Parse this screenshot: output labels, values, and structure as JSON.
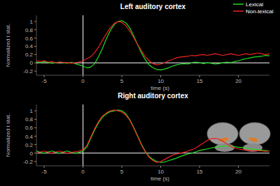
{
  "chart_data": [
    {
      "type": "line",
      "title": "Left auditory cortex",
      "x_label": "time (s)",
      "y_label": "Normalized t stat.",
      "legend": "upper right",
      "xlim": [
        -6,
        24
      ],
      "ylim": [
        -0.3,
        1.15
      ],
      "xticks": [
        -5,
        0,
        5,
        10,
        15,
        20
      ],
      "yticks": [
        -0.2,
        0,
        0.2,
        0.4,
        0.6,
        0.8,
        1
      ],
      "x": [
        -6,
        -5.5,
        -5,
        -4.5,
        -4,
        -3.5,
        -3,
        -2.5,
        -2,
        -1.5,
        -1,
        -0.5,
        0,
        0.5,
        1,
        1.5,
        2,
        2.5,
        3,
        3.5,
        4,
        4.5,
        5,
        5.5,
        6,
        6.5,
        7,
        7.5,
        8,
        8.5,
        9,
        9.5,
        10,
        10.5,
        11,
        11.5,
        12,
        12.5,
        13,
        13.5,
        14,
        14.5,
        15,
        15.5,
        16,
        16.5,
        17,
        17.5,
        18,
        18.5,
        19,
        19.5,
        20,
        20.5,
        21,
        21.5,
        22,
        22.5,
        23,
        23.5,
        24
      ],
      "series": [
        {
          "name": "Lexical",
          "color": "#22dd22",
          "values": [
            0.02,
            0.0,
            0.03,
            0.01,
            -0.01,
            0.0,
            0.02,
            0.0,
            -0.01,
            0.01,
            -0.02,
            -0.05,
            -0.08,
            -0.12,
            -0.1,
            -0.02,
            0.15,
            0.35,
            0.58,
            0.78,
            0.92,
            1.0,
            1.02,
            0.97,
            0.85,
            0.66,
            0.45,
            0.25,
            0.08,
            -0.05,
            -0.12,
            -0.16,
            -0.17,
            -0.15,
            -0.12,
            -0.08,
            -0.05,
            -0.03,
            -0.02,
            -0.03,
            0.0,
            0.02,
            0.0,
            -0.02,
            0.0,
            -0.01,
            -0.03,
            -0.02,
            0.0,
            0.02,
            0.0,
            0.03,
            0.05,
            0.08,
            0.1,
            0.12,
            0.14,
            0.15,
            0.16,
            0.18,
            0.17
          ]
        },
        {
          "name": "Non-lexical",
          "color": "#ee2222",
          "values": [
            0.05,
            0.03,
            0.05,
            0.02,
            0.03,
            0.0,
            0.02,
            0.01,
            0.0,
            -0.01,
            0.0,
            0.02,
            0.05,
            0.1,
            0.15,
            0.25,
            0.38,
            0.55,
            0.7,
            0.85,
            0.95,
            1.0,
            0.98,
            0.9,
            0.78,
            0.62,
            0.45,
            0.3,
            0.15,
            0.05,
            -0.02,
            -0.05,
            -0.03,
            0.0,
            0.05,
            0.08,
            0.12,
            0.14,
            0.15,
            0.16,
            0.18,
            0.17,
            0.19,
            0.2,
            0.18,
            0.2,
            0.22,
            0.2,
            0.18,
            0.2,
            0.22,
            0.2,
            0.18,
            0.2,
            0.22,
            0.2,
            0.22,
            0.24,
            0.22,
            0.2,
            0.22
          ]
        }
      ]
    },
    {
      "type": "line",
      "title": "Right auditory cortex",
      "x_label": "time (s)",
      "y_label": "Normalized t stat.",
      "xlim": [
        -6,
        24
      ],
      "ylim": [
        -0.3,
        1.15
      ],
      "xticks": [
        -5,
        0,
        5,
        10,
        15,
        20
      ],
      "yticks": [
        -0.2,
        0,
        0.2,
        0.4,
        0.6,
        0.8,
        1
      ],
      "x": [
        -6,
        -5.5,
        -5,
        -4.5,
        -4,
        -3.5,
        -3,
        -2.5,
        -2,
        -1.5,
        -1,
        -0.5,
        0,
        0.5,
        1,
        1.5,
        2,
        2.5,
        3,
        3.5,
        4,
        4.5,
        5,
        5.5,
        6,
        6.5,
        7,
        7.5,
        8,
        8.5,
        9,
        9.5,
        10,
        10.5,
        11,
        11.5,
        12,
        12.5,
        13,
        13.5,
        14,
        14.5,
        15,
        15.5,
        16,
        16.5,
        17,
        17.5,
        18,
        18.5,
        19,
        19.5,
        20,
        20.5,
        21,
        21.5,
        22,
        22.5,
        23,
        23.5,
        24
      ],
      "series": [
        {
          "color": "#22dd22",
          "values": [
            0.05,
            0.02,
            0.0,
            0.03,
            0.05,
            0.02,
            0.0,
            0.03,
            0.05,
            0.02,
            0.0,
            0.02,
            0.05,
            0.15,
            0.35,
            0.55,
            0.72,
            0.85,
            0.93,
            0.98,
            1.0,
            1.02,
            1.0,
            0.93,
            0.8,
            0.62,
            0.42,
            0.22,
            0.05,
            -0.08,
            -0.15,
            -0.2,
            -0.22,
            -0.21,
            -0.18,
            -0.15,
            -0.12,
            -0.08,
            -0.05,
            -0.02,
            0.0,
            0.03,
            0.06,
            0.08,
            0.1,
            0.12,
            0.14,
            0.15,
            0.16,
            0.17,
            0.16,
            0.15,
            0.14,
            0.13,
            0.12,
            0.1,
            0.09,
            0.08,
            0.07,
            0.06,
            0.05
          ]
        },
        {
          "color": "#ee2222",
          "values": [
            0.0,
            0.03,
            0.05,
            0.02,
            0.0,
            0.03,
            0.05,
            0.02,
            0.0,
            0.02,
            0.03,
            0.05,
            0.08,
            0.18,
            0.38,
            0.58,
            0.75,
            0.88,
            0.95,
            1.0,
            1.02,
            1.0,
            0.97,
            0.9,
            0.78,
            0.6,
            0.4,
            0.2,
            0.03,
            -0.1,
            -0.18,
            -0.22,
            -0.2,
            -0.15,
            -0.1,
            -0.05,
            -0.02,
            0.0,
            0.02,
            0.05,
            0.08,
            0.12,
            0.18,
            0.24,
            0.3,
            0.34,
            0.35,
            0.33,
            0.28,
            0.22,
            0.16,
            0.12,
            0.1,
            0.08,
            0.07,
            0.06,
            0.05,
            0.06,
            0.05,
            0.04,
            0.05
          ]
        }
      ]
    }
  ]
}
